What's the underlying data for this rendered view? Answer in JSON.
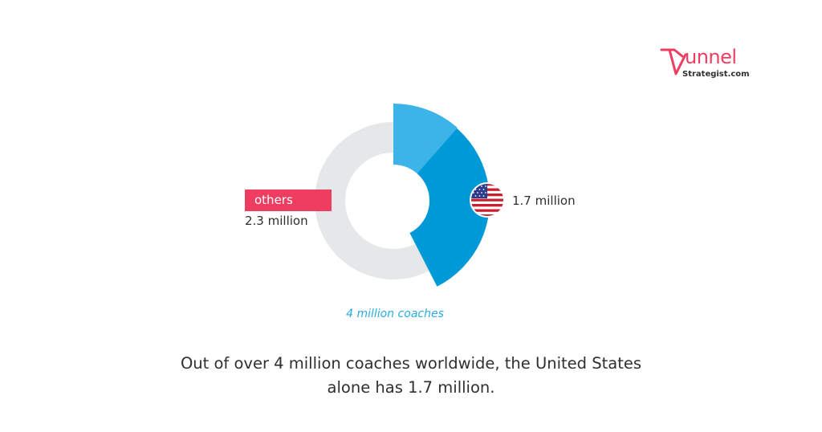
{
  "logo": {
    "word": "unnel",
    "sub": "Strategist.com",
    "brand_color": "#ef3d62"
  },
  "chart_data": {
    "type": "pie",
    "style": "donut",
    "categories": [
      "United States",
      "others"
    ],
    "values": [
      1.7,
      2.3
    ],
    "unit": "million",
    "colors": {
      "United States": "#0099d8",
      "United States highlight": "#3cb4e8",
      "others": "#e6e7e8",
      "others_tag": "#ef3d62",
      "total_label": "#29abe2"
    },
    "labels": {
      "others_name": "others",
      "others_value": "2.3 million",
      "us_value": "1.7 million",
      "total": "4 million coaches"
    },
    "us_marker_icon": "us-flag-icon"
  },
  "caption": {
    "line1": "Out of over 4 million coaches worldwide, the United States",
    "line2": "alone has 1.7 million."
  }
}
